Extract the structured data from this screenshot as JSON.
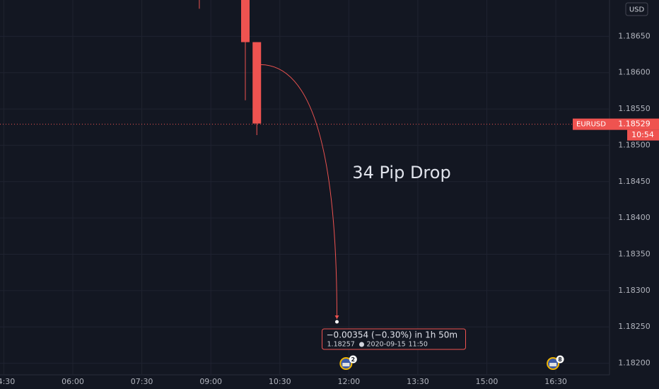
{
  "chart_data": {
    "type": "candlestick",
    "currency": "USD",
    "symbol": "EURUSD",
    "x": [
      "08:45",
      "09:45",
      "10:00"
    ],
    "open": [
      null,
      null,
      1.18642
    ],
    "high": [
      null,
      null,
      1.18642
    ],
    "low": [
      1.18688,
      1.18562,
      1.18514
    ],
    "close": [
      null,
      1.18642,
      1.1853
    ],
    "color": "#ef5350",
    "xlim": [
      "04:25",
      "17:40"
    ],
    "xticks": [
      "04:30",
      "06:00",
      "07:30",
      "09:00",
      "10:30",
      "12:00",
      "13:30",
      "15:00",
      "16:30"
    ],
    "ylim": [
      1.18184,
      1.187
    ],
    "yticks": [
      {
        "value": 1.182,
        "label": "1.18200"
      },
      {
        "value": 1.1825,
        "label": "1.18250"
      },
      {
        "value": 1.183,
        "label": "1.18300"
      },
      {
        "value": 1.1835,
        "label": "1.18350"
      },
      {
        "value": 1.184,
        "label": "1.18400"
      },
      {
        "value": 1.1845,
        "label": "1.18450"
      },
      {
        "value": 1.185,
        "label": "1.18500"
      },
      {
        "value": 1.1855,
        "label": "1.18550"
      },
      {
        "value": 1.186,
        "label": "1.18600"
      },
      {
        "value": 1.1865,
        "label": "1.18650"
      }
    ],
    "grid": true,
    "last_price": 1.18529,
    "countdown": "10:54",
    "annotation": "34 Pip Drop",
    "measure": {
      "from_time": "10:00",
      "from_price": 1.18611,
      "price": 1.18257,
      "change": "−0.00354 (−0.30%) in 1h 50m",
      "date": "2020-09-15",
      "time": "11:50"
    },
    "events": [
      {
        "time": "12:00",
        "count": 2
      },
      {
        "time": "16:30",
        "count": 8
      }
    ]
  }
}
